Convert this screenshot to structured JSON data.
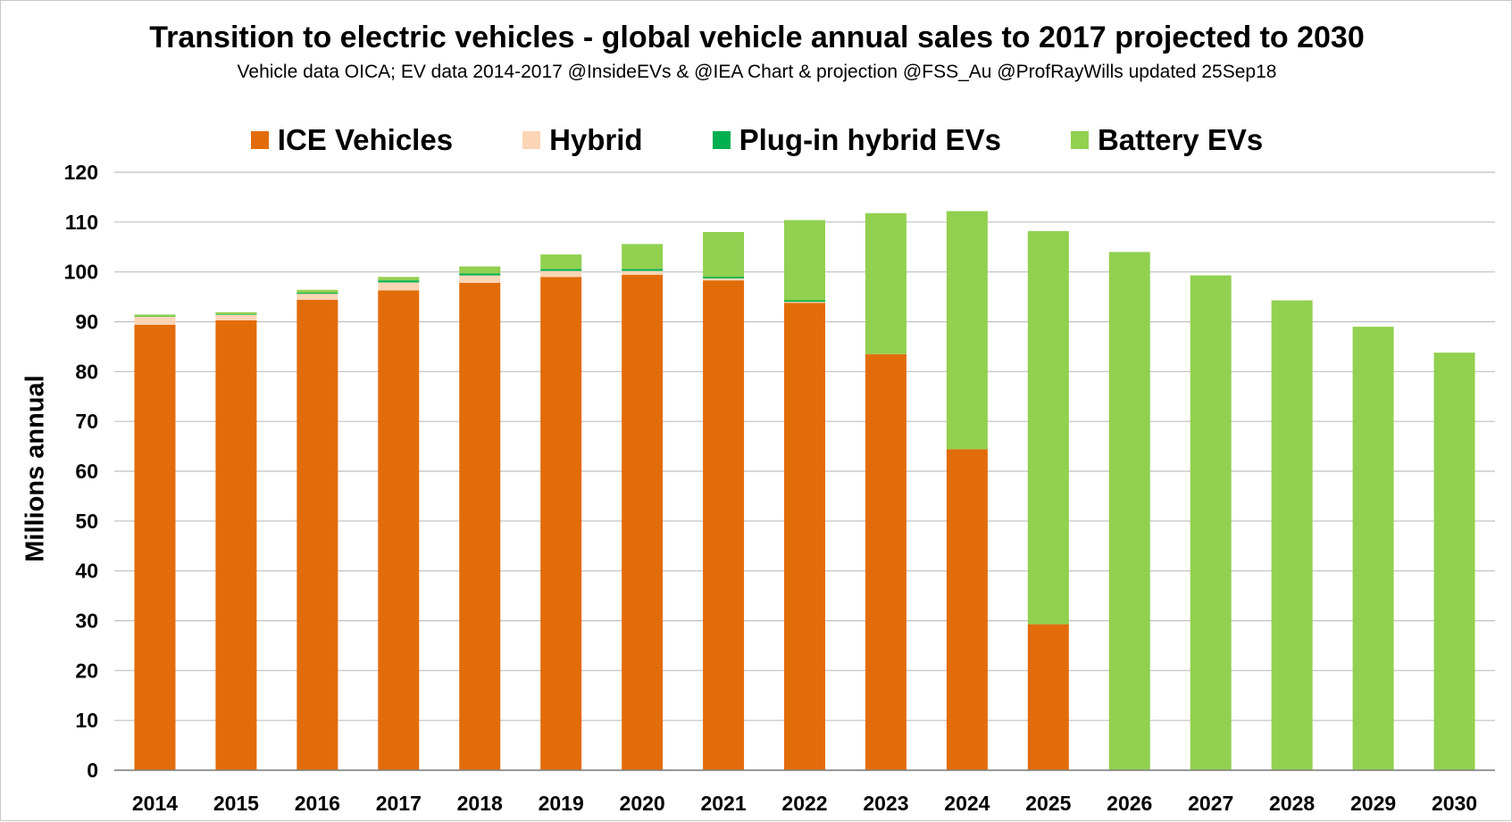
{
  "chart_data": {
    "type": "bar",
    "stacked": true,
    "title": "Transition to electric vehicles  - global vehicle annual sales to 2017 projected to 2030",
    "subtitle": "Vehicle data OICA; EV data 2014-2017 @InsideEVs & @IEA  Chart & projection @FSS_Au  @ProfRayWills updated 25Sep18",
    "xlabel": "",
    "ylabel": "Millions annual",
    "ylim": [
      0,
      120
    ],
    "yticks": [
      "0",
      "10",
      "20",
      "30",
      "40",
      "50",
      "60",
      "70",
      "80",
      "90",
      "100",
      "110",
      "120"
    ],
    "grid": true,
    "legend_position": "top",
    "categories": [
      "2014",
      "2015",
      "2016",
      "2017",
      "2018",
      "2019",
      "2020",
      "2021",
      "2022",
      "2023",
      "2024",
      "2025",
      "2026",
      "2027",
      "2028",
      "2029",
      "2030"
    ],
    "series": [
      {
        "name": "ICE Vehicles",
        "color": "#e36c0a",
        "values": [
          89.4,
          90.3,
          94.4,
          96.3,
          97.8,
          99.0,
          99.4,
          98.3,
          93.8,
          83.5,
          64.4,
          29.3,
          0,
          0,
          0,
          0,
          0
        ]
      },
      {
        "name": "Hybrid",
        "color": "#fbd5b5",
        "values": [
          1.6,
          1.1,
          1.2,
          1.6,
          1.5,
          1.2,
          0.8,
          0.4,
          0.2,
          0,
          0,
          0,
          0,
          0,
          0,
          0,
          0
        ]
      },
      {
        "name": "Plug-in hybrid EVs",
        "color": "#00b050",
        "values": [
          0.05,
          0.1,
          0.2,
          0.4,
          0.4,
          0.4,
          0.4,
          0.3,
          0.3,
          0,
          0,
          0,
          0,
          0,
          0,
          0,
          0
        ]
      },
      {
        "name": "Battery EVs",
        "color": "#92d050",
        "values": [
          0.15,
          0.4,
          0.6,
          0.7,
          1.4,
          2.9,
          5.0,
          9.0,
          16.1,
          28.3,
          47.8,
          78.9,
          104.0,
          99.3,
          94.3,
          89.0,
          83.8
        ]
      }
    ]
  }
}
